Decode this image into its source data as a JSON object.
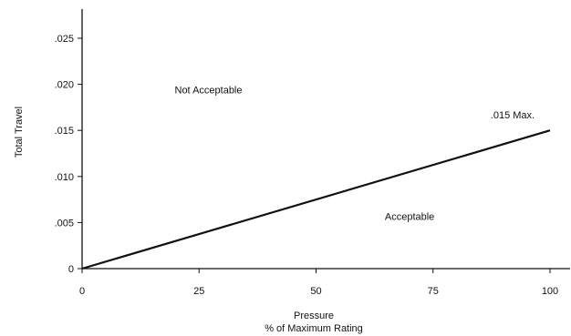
{
  "chart_data": {
    "type": "line",
    "title": "",
    "xlabel": "Pressure",
    "xlabel_sub": "% of Maximum Rating",
    "ylabel": "Total Travel",
    "xlim": [
      0,
      100
    ],
    "ylim": [
      0,
      0.025
    ],
    "xticks": [
      0,
      25,
      50,
      75,
      100
    ],
    "xtick_labels": [
      "0",
      "25",
      "50",
      "75",
      "100"
    ],
    "yticks": [
      0,
      0.005,
      0.01,
      0.015,
      0.02,
      0.025
    ],
    "ytick_labels": [
      "0",
      ".005",
      ".010",
      ".015",
      ".020",
      ".025"
    ],
    "grid": false,
    "series": [
      {
        "x": [
          0,
          100
        ],
        "y": [
          0,
          0.015
        ]
      }
    ],
    "annotations": [
      {
        "text": "Not Acceptable",
        "x": 27,
        "y": 0.019
      },
      {
        "text": "Acceptable",
        "x": 70,
        "y": 0.0053
      },
      {
        "text": ".015 Max.",
        "x": 92,
        "y": 0.0163
      }
    ]
  }
}
